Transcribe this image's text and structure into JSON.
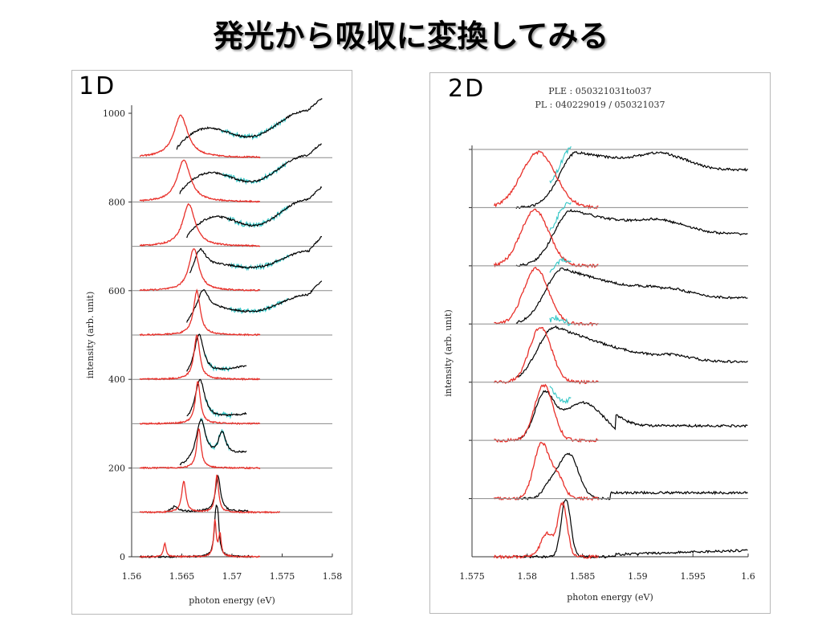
{
  "slide": {
    "title": "発光から吸収に変換してみる"
  },
  "colors": {
    "pl": "#e8302a",
    "ple": "#000000",
    "ple_extended": "#33c6c6",
    "baseline": "#8a8a8a",
    "axis": "#333333"
  },
  "chart_data": [
    {
      "id": "1D",
      "type": "line",
      "panel_label": "1D",
      "xlabel": "photon energy (eV)",
      "ylabel": "intensity (arb. unit)",
      "xlim": [
        1.56,
        1.58
      ],
      "ylim": [
        0,
        1000
      ],
      "x_ticks": [
        "1.56",
        "1.565",
        "1.57",
        "1.575",
        "1.58"
      ],
      "y_ticks": [
        "0",
        "200",
        "400",
        "600",
        "800",
        "1000"
      ],
      "grid": "baseline lines only",
      "legend": "none",
      "series": [
        {
          "offset": 900,
          "pl": {
            "peak": 1.5649,
            "width": 0.0017,
            "height": 95,
            "start": 1.5608,
            "end": 1.5728
          },
          "ple": {
            "start": 1.5645,
            "end": 1.579,
            "end_y": 130
          }
        },
        {
          "offset": 800,
          "pl": {
            "peak": 1.5652,
            "width": 0.0016,
            "height": 95,
            "start": 1.5608,
            "end": 1.5728
          },
          "ple": {
            "start": 1.5648,
            "end": 1.579,
            "end_y": 128
          }
        },
        {
          "offset": 700,
          "pl": {
            "peak": 1.5657,
            "width": 0.0015,
            "height": 95,
            "start": 1.5608,
            "end": 1.5728
          },
          "ple": {
            "start": 1.5655,
            "end": 1.579,
            "end_y": 130
          }
        },
        {
          "offset": 600,
          "pl": {
            "peak": 1.5662,
            "width": 0.0012,
            "height": 95,
            "start": 1.5608,
            "end": 1.5728
          },
          "ple": {
            "start": 1.5658,
            "end": 1.579,
            "end_y": 120
          }
        },
        {
          "offset": 500,
          "pl": {
            "peak": 1.5665,
            "width": 0.0008,
            "height": 100,
            "start": 1.5608,
            "end": 1.5728
          },
          "ple": {
            "start": 1.5655,
            "end": 1.579,
            "end_y": 122
          }
        },
        {
          "offset": 400,
          "pl": {
            "peak": 1.5665,
            "width": 0.0007,
            "height": 100,
            "start": 1.5608,
            "end": 1.5728
          },
          "ple": {
            "start": 1.5655,
            "end": 1.5715,
            "end_y": 30
          }
        },
        {
          "offset": 300,
          "pl": {
            "peak": 1.5666,
            "width": 0.0006,
            "height": 95,
            "start": 1.5608,
            "end": 1.5728
          },
          "ple": {
            "start": 1.5655,
            "end": 1.5715,
            "end_y": 22
          }
        },
        {
          "offset": 200,
          "pl": {
            "peak": 1.5667,
            "width": 0.0005,
            "height": 90,
            "start": 1.5608,
            "end": 1.5728
          },
          "ple": {
            "start": 1.5648,
            "end": 1.5715,
            "end_y": 35
          }
        },
        {
          "offset": 100,
          "pl": {
            "peak": 1.5685,
            "width": 0.0004,
            "height": 85,
            "start": 1.5608,
            "end": 1.5748
          },
          "ple": {
            "start": 1.5635,
            "end": 1.5718,
            "end_y": 3
          }
        },
        {
          "offset": 0,
          "pl": {
            "peak": 1.5683,
            "width": 0.0003,
            "height": 80,
            "start": 1.5608,
            "end": 1.5728
          },
          "ple": {
            "start": 1.5608,
            "end": 1.572,
            "end_y": 0
          }
        }
      ]
    },
    {
      "id": "2D",
      "type": "line",
      "panel_label": "2D",
      "header_lines": [
        "PLE : 050321031to037",
        "PL : 040229019 / 050321037"
      ],
      "xlabel": "photon energy (eV)",
      "ylabel": "intensity (arb. unit)",
      "xlim": [
        1.575,
        1.6
      ],
      "ylim": [
        0,
        7
      ],
      "x_ticks": [
        "1.575",
        "1.58",
        "1.585",
        "1.59",
        "1.595",
        "1.6"
      ],
      "grid": "baseline lines only",
      "legend": "none",
      "series": [
        {
          "offset": 6,
          "pl": {
            "peak": 1.581,
            "width": 0.0022
          },
          "ple": {
            "onset": 1.5845,
            "tail": 0.65
          }
        },
        {
          "offset": 5,
          "pl": {
            "peak": 1.5807,
            "width": 0.0018
          },
          "ple": {
            "onset": 1.584,
            "tail": 0.55
          }
        },
        {
          "offset": 4,
          "pl": {
            "peak": 1.5808,
            "width": 0.0016
          },
          "ple": {
            "onset": 1.5832,
            "tail": 0.45
          }
        },
        {
          "offset": 3,
          "pl": {
            "peak": 1.5812,
            "width": 0.0014
          },
          "ple": {
            "onset": 1.5825,
            "tail": 0.35
          }
        },
        {
          "offset": 2,
          "pl": {
            "peak": 1.5815,
            "width": 0.0012
          },
          "ple": {
            "onset": 1.582,
            "tail": 0.25
          }
        },
        {
          "offset": 1,
          "pl": {
            "peak": 1.5813,
            "width": 0.001
          },
          "ple": {
            "onset": 1.584,
            "tail": 0.1
          }
        },
        {
          "offset": 0,
          "pl": {
            "peak": 1.5832,
            "width": 0.0006
          },
          "ple": {
            "onset": 1.5835,
            "tail": 0.08
          }
        }
      ]
    }
  ]
}
